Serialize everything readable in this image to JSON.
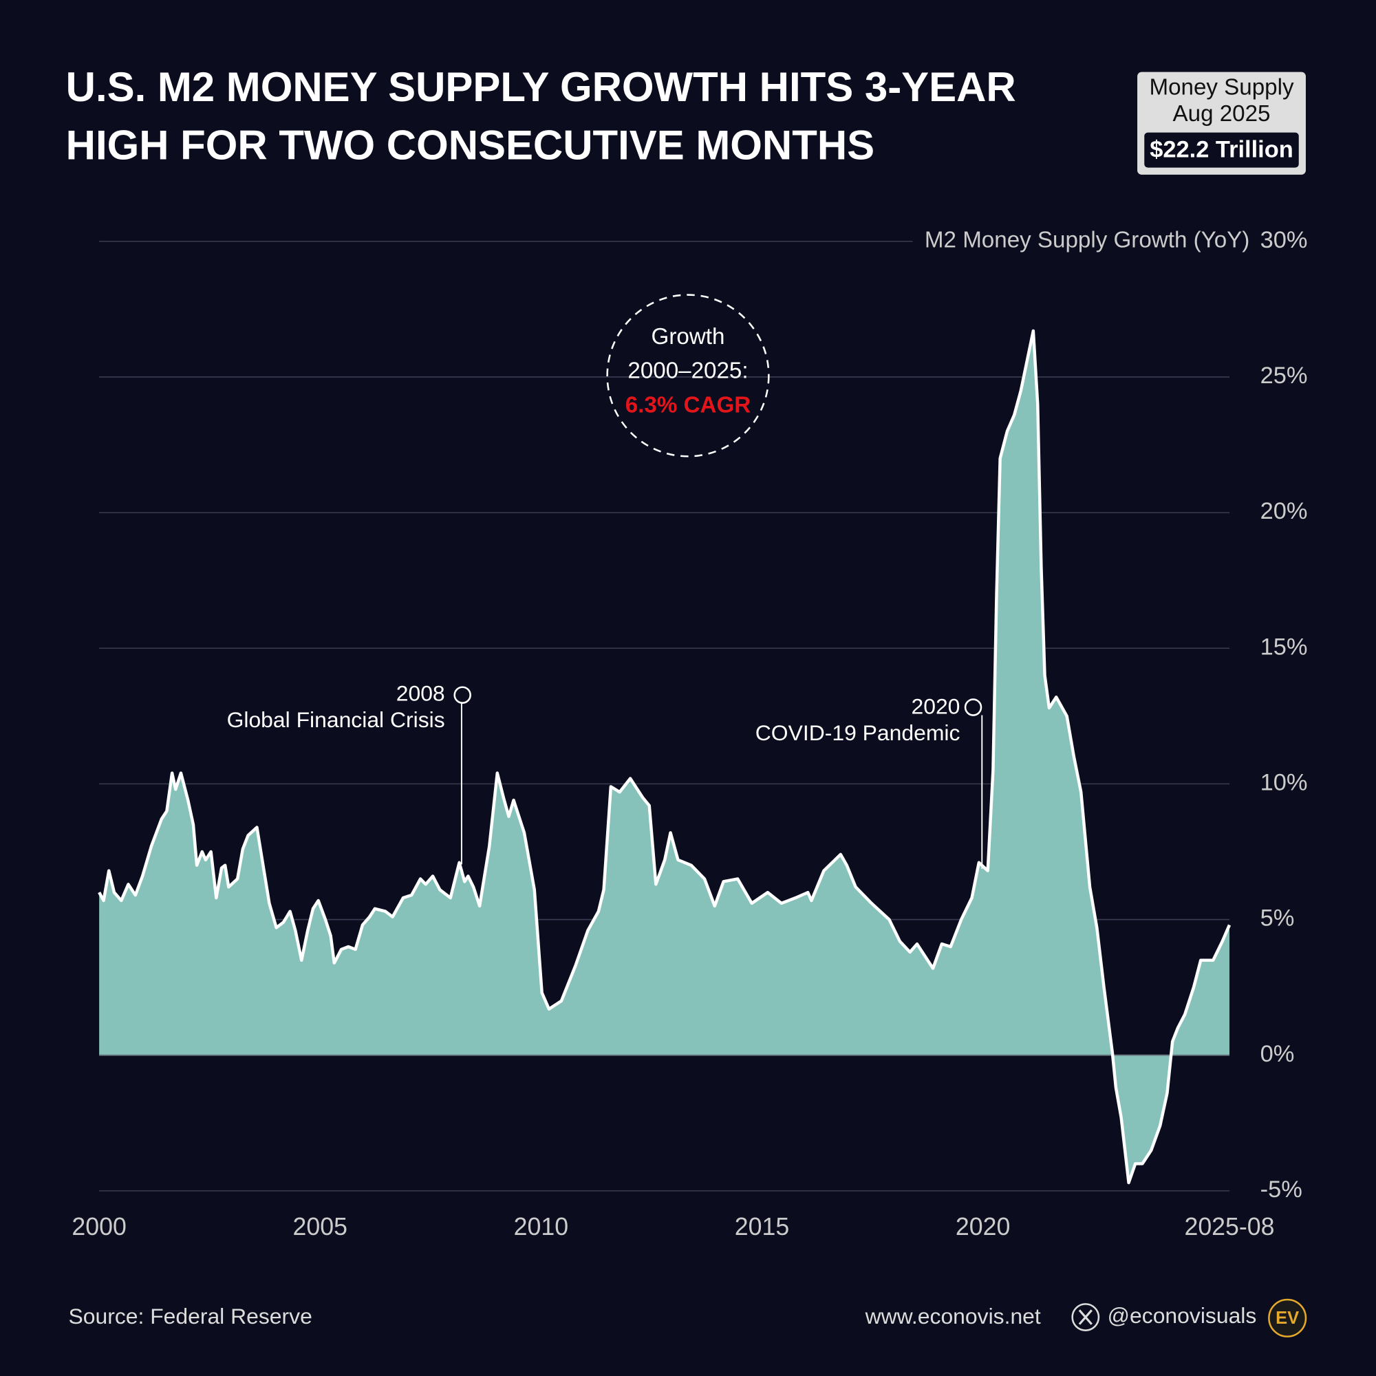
{
  "chart_data": {
    "type": "area",
    "title": "U.S. M2 MONEY SUPPLY GROWTH HITS 3-YEAR HIGH FOR TWO CONSECUTIVE MONTHS",
    "title_lines": [
      "U.S. M2 MONEY SUPPLY GROWTH HITS 3-YEAR",
      "HIGH FOR TWO CONSECUTIVE MONTHS"
    ],
    "badge": {
      "line1": "Money Supply",
      "line2": "Aug 2025",
      "value": "$22.2 Trillion"
    },
    "y_label": "M2 Money Supply Growth (YoY)",
    "callout": {
      "line1": "Growth",
      "line2": "2000–2025:",
      "highlight": "6.3% CAGR"
    },
    "annotations": [
      {
        "year": "2008",
        "label": "Global Financial Crisis"
      },
      {
        "year": "2020",
        "label": "COVID-19 Pandemic"
      }
    ],
    "color": "#86c2ba",
    "line_color": "#ffffff",
    "x": [
      2000.0,
      2000.1,
      2000.22,
      2000.34,
      2000.5,
      2000.66,
      2000.82,
      2000.98,
      2001.18,
      2001.41,
      2001.53,
      2001.65,
      2001.73,
      2001.85,
      2002.01,
      2002.13,
      2002.21,
      2002.33,
      2002.41,
      2002.53,
      2002.65,
      2002.77,
      2002.85,
      2002.93,
      2003.13,
      2003.25,
      2003.37,
      2003.57,
      2003.69,
      2003.85,
      2004.01,
      2004.17,
      2004.32,
      2004.44,
      2004.58,
      2004.72,
      2004.84,
      2004.96,
      2005.12,
      2005.24,
      2005.32,
      2005.48,
      2005.64,
      2005.8,
      2005.96,
      2006.12,
      2006.24,
      2006.48,
      2006.64,
      2006.88,
      2007.07,
      2007.27,
      2007.39,
      2007.55,
      2007.71,
      2007.95,
      2008.15,
      2008.27,
      2008.35,
      2008.47,
      2008.61,
      2008.83,
      2009.01,
      2009.15,
      2009.27,
      2009.38,
      2009.62,
      2009.85,
      2010.02,
      2010.18,
      2010.46,
      2010.78,
      2011.06,
      2011.3,
      2011.42,
      2011.58,
      2011.78,
      2012.02,
      2012.3,
      2012.45,
      2012.6,
      2012.8,
      2012.93,
      2013.1,
      2013.4,
      2013.7,
      2013.93,
      2014.13,
      2014.45,
      2014.77,
      2015.13,
      2015.44,
      2015.76,
      2016.04,
      2016.12,
      2016.4,
      2016.78,
      2016.92,
      2017.12,
      2017.48,
      2017.88,
      2018.12,
      2018.35,
      2018.51,
      2018.87,
      2019.07,
      2019.27,
      2019.51,
      2019.75,
      2019.91,
      2020.11,
      2020.23,
      2020.31,
      2020.39,
      2020.55,
      2020.71,
      2020.86,
      2021.14,
      2021.24,
      2021.32,
      2021.4,
      2021.5,
      2021.66,
      2021.9,
      2022.06,
      2022.22,
      2022.42,
      2022.58,
      2022.74,
      2022.93,
      2023.01,
      2023.13,
      2023.3,
      2023.45,
      2023.61,
      2023.81,
      2024.01,
      2024.17,
      2024.29,
      2024.41,
      2024.57,
      2024.77,
      2024.93,
      2025.21,
      2025.42,
      2025.58
    ],
    "values": [
      6.0,
      5.7,
      6.8,
      6.0,
      5.7,
      6.3,
      5.9,
      6.6,
      7.7,
      8.7,
      9.0,
      10.4,
      9.8,
      10.4,
      9.4,
      8.5,
      7.0,
      7.5,
      7.2,
      7.5,
      5.8,
      6.9,
      7.0,
      6.2,
      6.5,
      7.6,
      8.1,
      8.4,
      7.2,
      5.6,
      4.7,
      4.9,
      5.3,
      4.6,
      3.5,
      4.6,
      5.4,
      5.7,
      5.0,
      4.4,
      3.4,
      3.9,
      4.0,
      3.9,
      4.8,
      5.1,
      5.4,
      5.3,
      5.1,
      5.8,
      5.9,
      6.5,
      6.3,
      6.6,
      6.1,
      5.8,
      7.1,
      6.4,
      6.6,
      6.2,
      5.5,
      7.7,
      10.4,
      9.5,
      8.8,
      9.4,
      8.2,
      6.1,
      2.3,
      1.7,
      2.0,
      3.3,
      4.6,
      5.3,
      6.1,
      9.9,
      9.7,
      10.2,
      9.5,
      9.2,
      6.3,
      7.2,
      8.2,
      7.2,
      7.0,
      6.5,
      5.5,
      6.4,
      6.5,
      5.6,
      6.0,
      5.6,
      5.8,
      6.0,
      5.7,
      6.8,
      7.4,
      7.0,
      6.2,
      5.6,
      5.0,
      4.2,
      3.8,
      4.1,
      3.2,
      4.1,
      4.0,
      5.0,
      5.8,
      7.1,
      6.8,
      10.5,
      17.0,
      22.0,
      23.0,
      23.6,
      24.5,
      26.7,
      24.0,
      18.0,
      14.0,
      12.8,
      13.2,
      12.5,
      11.0,
      9.7,
      6.2,
      4.7,
      2.5,
      0.1,
      -1.2,
      -2.3,
      -4.7,
      -4.0,
      -4.0,
      -3.5,
      -2.6,
      -1.4,
      0.5,
      1.0,
      1.5,
      2.5,
      3.5,
      3.5,
      4.2,
      4.8
    ],
    "xlim": [
      2000,
      2025.58
    ],
    "xticks": [
      2000,
      2005,
      2010,
      2015,
      2020,
      {
        "value": 2025.58,
        "label": "2025-08"
      }
    ],
    "ylim": [
      -5,
      30
    ],
    "yticks": [
      {
        "value": -5,
        "label": "-5%"
      },
      {
        "value": 0,
        "label": "0%"
      },
      {
        "value": 5,
        "label": "5%"
      },
      {
        "value": 10,
        "label": "10%"
      },
      {
        "value": 15,
        "label": "15%"
      },
      {
        "value": 20,
        "label": "20%"
      },
      {
        "value": 25,
        "label": "25%"
      },
      {
        "value": 30,
        "label": "30%"
      }
    ],
    "grid": true,
    "source": "Source: Federal Reserve",
    "website": "www.econovis.net",
    "handle": "@econovisuals",
    "logo": "EV"
  }
}
